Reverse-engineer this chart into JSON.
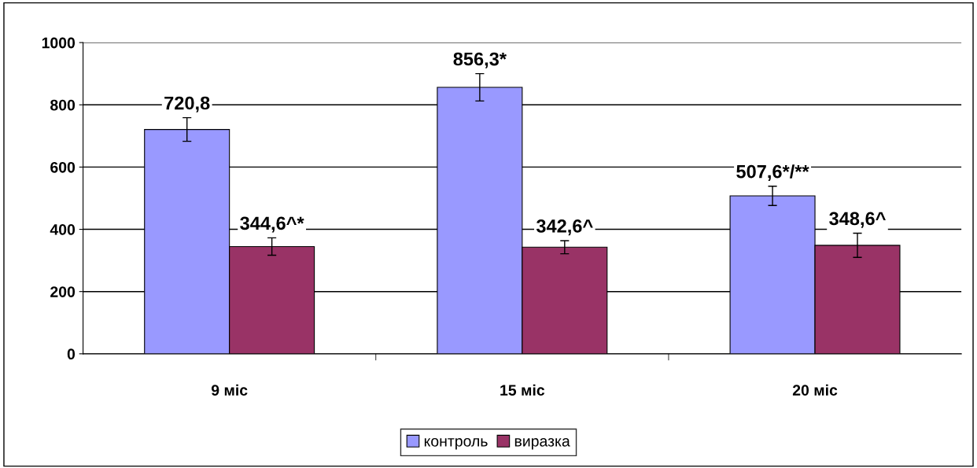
{
  "chart_data": {
    "type": "bar",
    "categories": [
      "9 міс",
      "15 міс",
      "20 міс"
    ],
    "series": [
      {
        "name": "контроль",
        "color": "#9999ff",
        "values": [
          720.8,
          856.3,
          507.6
        ],
        "errors": [
          38,
          44,
          31
        ],
        "value_labels": [
          "720,8",
          "856,3*",
          "507,6*/**"
        ]
      },
      {
        "name": "виразка",
        "color": "#993366",
        "values": [
          344.6,
          342.6,
          348.6
        ],
        "errors": [
          28,
          21,
          39
        ],
        "value_labels": [
          "344,6^*",
          "342,6^",
          "348,6^"
        ]
      }
    ],
    "ylim": [
      0,
      1000
    ],
    "yticks": [
      0,
      200,
      400,
      600,
      800,
      1000
    ],
    "grid": "y",
    "legend": "bottom"
  }
}
